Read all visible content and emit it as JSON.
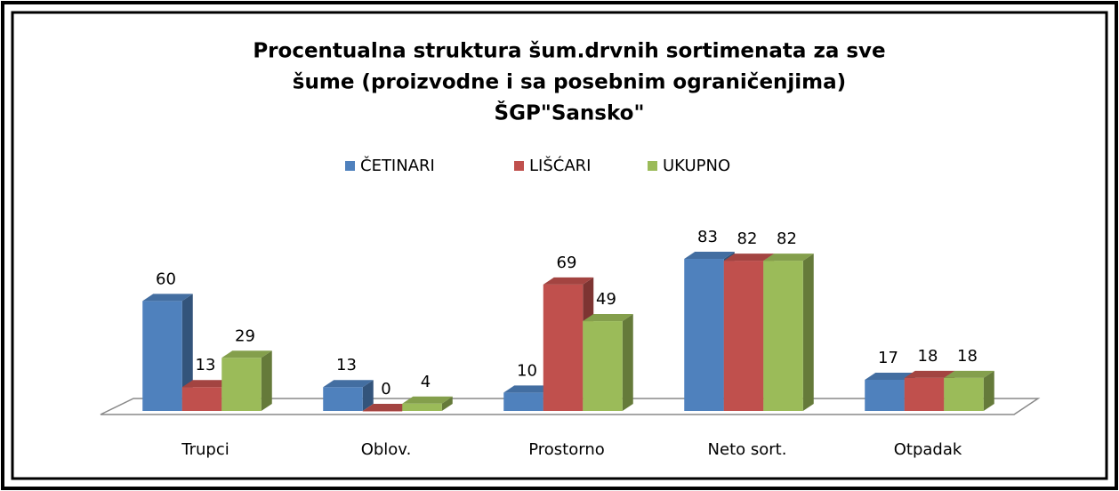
{
  "chart_data": {
    "type": "bar",
    "title": [
      "Procentualna struktura šum.drvnih sortimenata za sve",
      "šume (proizvodne i sa posebnim ograničenjima)",
      "ŠGP\"Sansko\""
    ],
    "categories": [
      "Trupci",
      "Oblov.",
      "Prostorno",
      "Neto sort.",
      "Otpadak"
    ],
    "series": [
      {
        "name": "ČETINARI",
        "color": "#4f81bd",
        "values": [
          60,
          13,
          10,
          83,
          17
        ]
      },
      {
        "name": "LIŠĆARI",
        "color": "#c0504d",
        "values": [
          13,
          0,
          69,
          82,
          18
        ]
      },
      {
        "name": "UKUPNO",
        "color": "#9bbb59",
        "values": [
          29,
          4,
          49,
          82,
          18
        ]
      }
    ],
    "legend": "top"
  }
}
